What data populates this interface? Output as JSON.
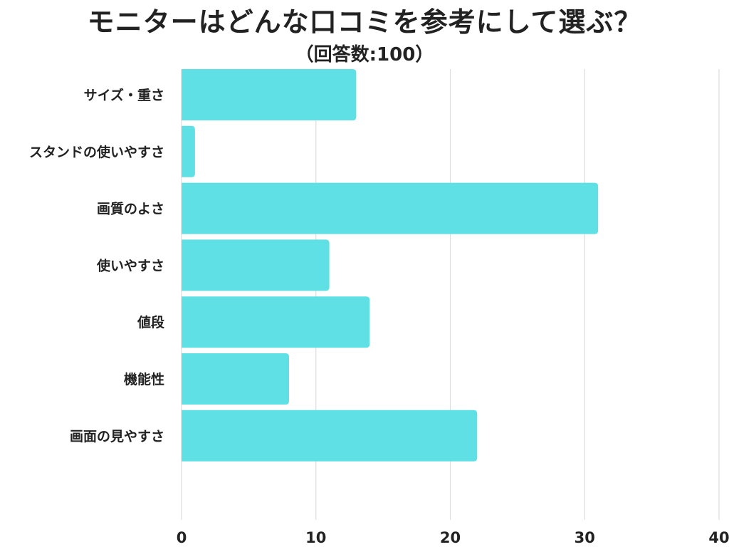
{
  "chart_data": {
    "type": "bar",
    "orientation": "horizontal",
    "title": "モニターはどんな口コミを参考にして選ぶ？",
    "subtitle": "（回答数:100）",
    "categories": [
      "サイズ・重さ",
      "スタンドの使いやすさ",
      "画質のよさ",
      "使いやすさ",
      "値段",
      "機能性",
      "画面の見やすさ"
    ],
    "values": [
      13,
      1,
      31,
      11,
      14,
      8,
      22
    ],
    "xlim": [
      0,
      40
    ],
    "xticks": [
      0,
      10,
      20,
      30,
      40
    ],
    "grid": true,
    "legend": "none",
    "colors": {
      "bar": "#5ee0e5",
      "grid": "#dddddd",
      "text": "#222222"
    }
  }
}
